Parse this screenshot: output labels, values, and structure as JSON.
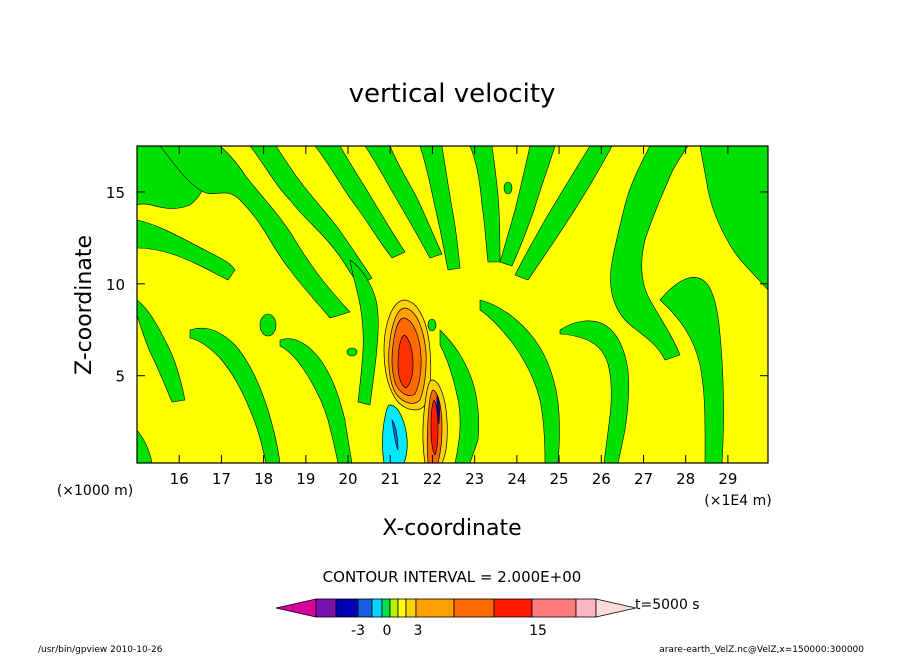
{
  "chart_data": {
    "type": "heatmap",
    "title": "vertical velocity",
    "xlabel": "X-coordinate",
    "ylabel": "Z-coordinate",
    "x_unit_left": "(×1000 m)",
    "x_unit_right": "(×1E4 m)",
    "x_ticks": [
      "16",
      "17",
      "18",
      "19",
      "20",
      "21",
      "22",
      "23",
      "24",
      "25",
      "26",
      "27",
      "28",
      "29"
    ],
    "x_tick_values": [
      16,
      17,
      18,
      19,
      20,
      21,
      22,
      23,
      24,
      25,
      26,
      27,
      28,
      29
    ],
    "y_ticks": [
      "5",
      "10",
      "15"
    ],
    "y_tick_values": [
      5,
      10,
      15
    ],
    "xlim": [
      15.0,
      29.95
    ],
    "ylim": [
      0.25,
      17.5
    ],
    "contour_interval": "CONTOUR INTERVAL = 2.000E+00",
    "colorbar": {
      "colors": [
        "#d6009a",
        "#7a10b0",
        "#0000b4",
        "#1460e0",
        "#00d4ff",
        "#00e04a",
        "#b4f000",
        "#ffff00",
        "#ffd200",
        "#ffa000",
        "#ff6a00",
        "#ff1a00",
        "#ff7a7a",
        "#ffb6c0",
        "#ffd8d8"
      ],
      "tick_labels": [
        "-3",
        "0",
        "3",
        "15"
      ],
      "time_label": "t=5000 s"
    },
    "contour_regions": [
      {
        "level": "weak_up",
        "color": "#ffff00",
        "desc": "background yellow"
      },
      {
        "level": "weak_down",
        "color": "#00e000"
      },
      {
        "level": "strong_up",
        "color": "#ff6a00",
        "center": [
          21.5,
          6.0
        ],
        "max": 15
      },
      {
        "level": "strong_up_2",
        "color": "#ff3000",
        "center": [
          22.1,
          3.0
        ]
      },
      {
        "level": "downdraft",
        "color": "#00e8ff",
        "center": [
          21.2,
          1.5
        ],
        "min": -3
      }
    ]
  },
  "footer": {
    "left": "/usr/bin/gpview   2010-10-26",
    "right": "arare-earth_VelZ.nc@VelZ,x=150000:300000"
  },
  "colors": {
    "yellow": "#ffff00",
    "green": "#00e000",
    "frame": "#000000"
  }
}
